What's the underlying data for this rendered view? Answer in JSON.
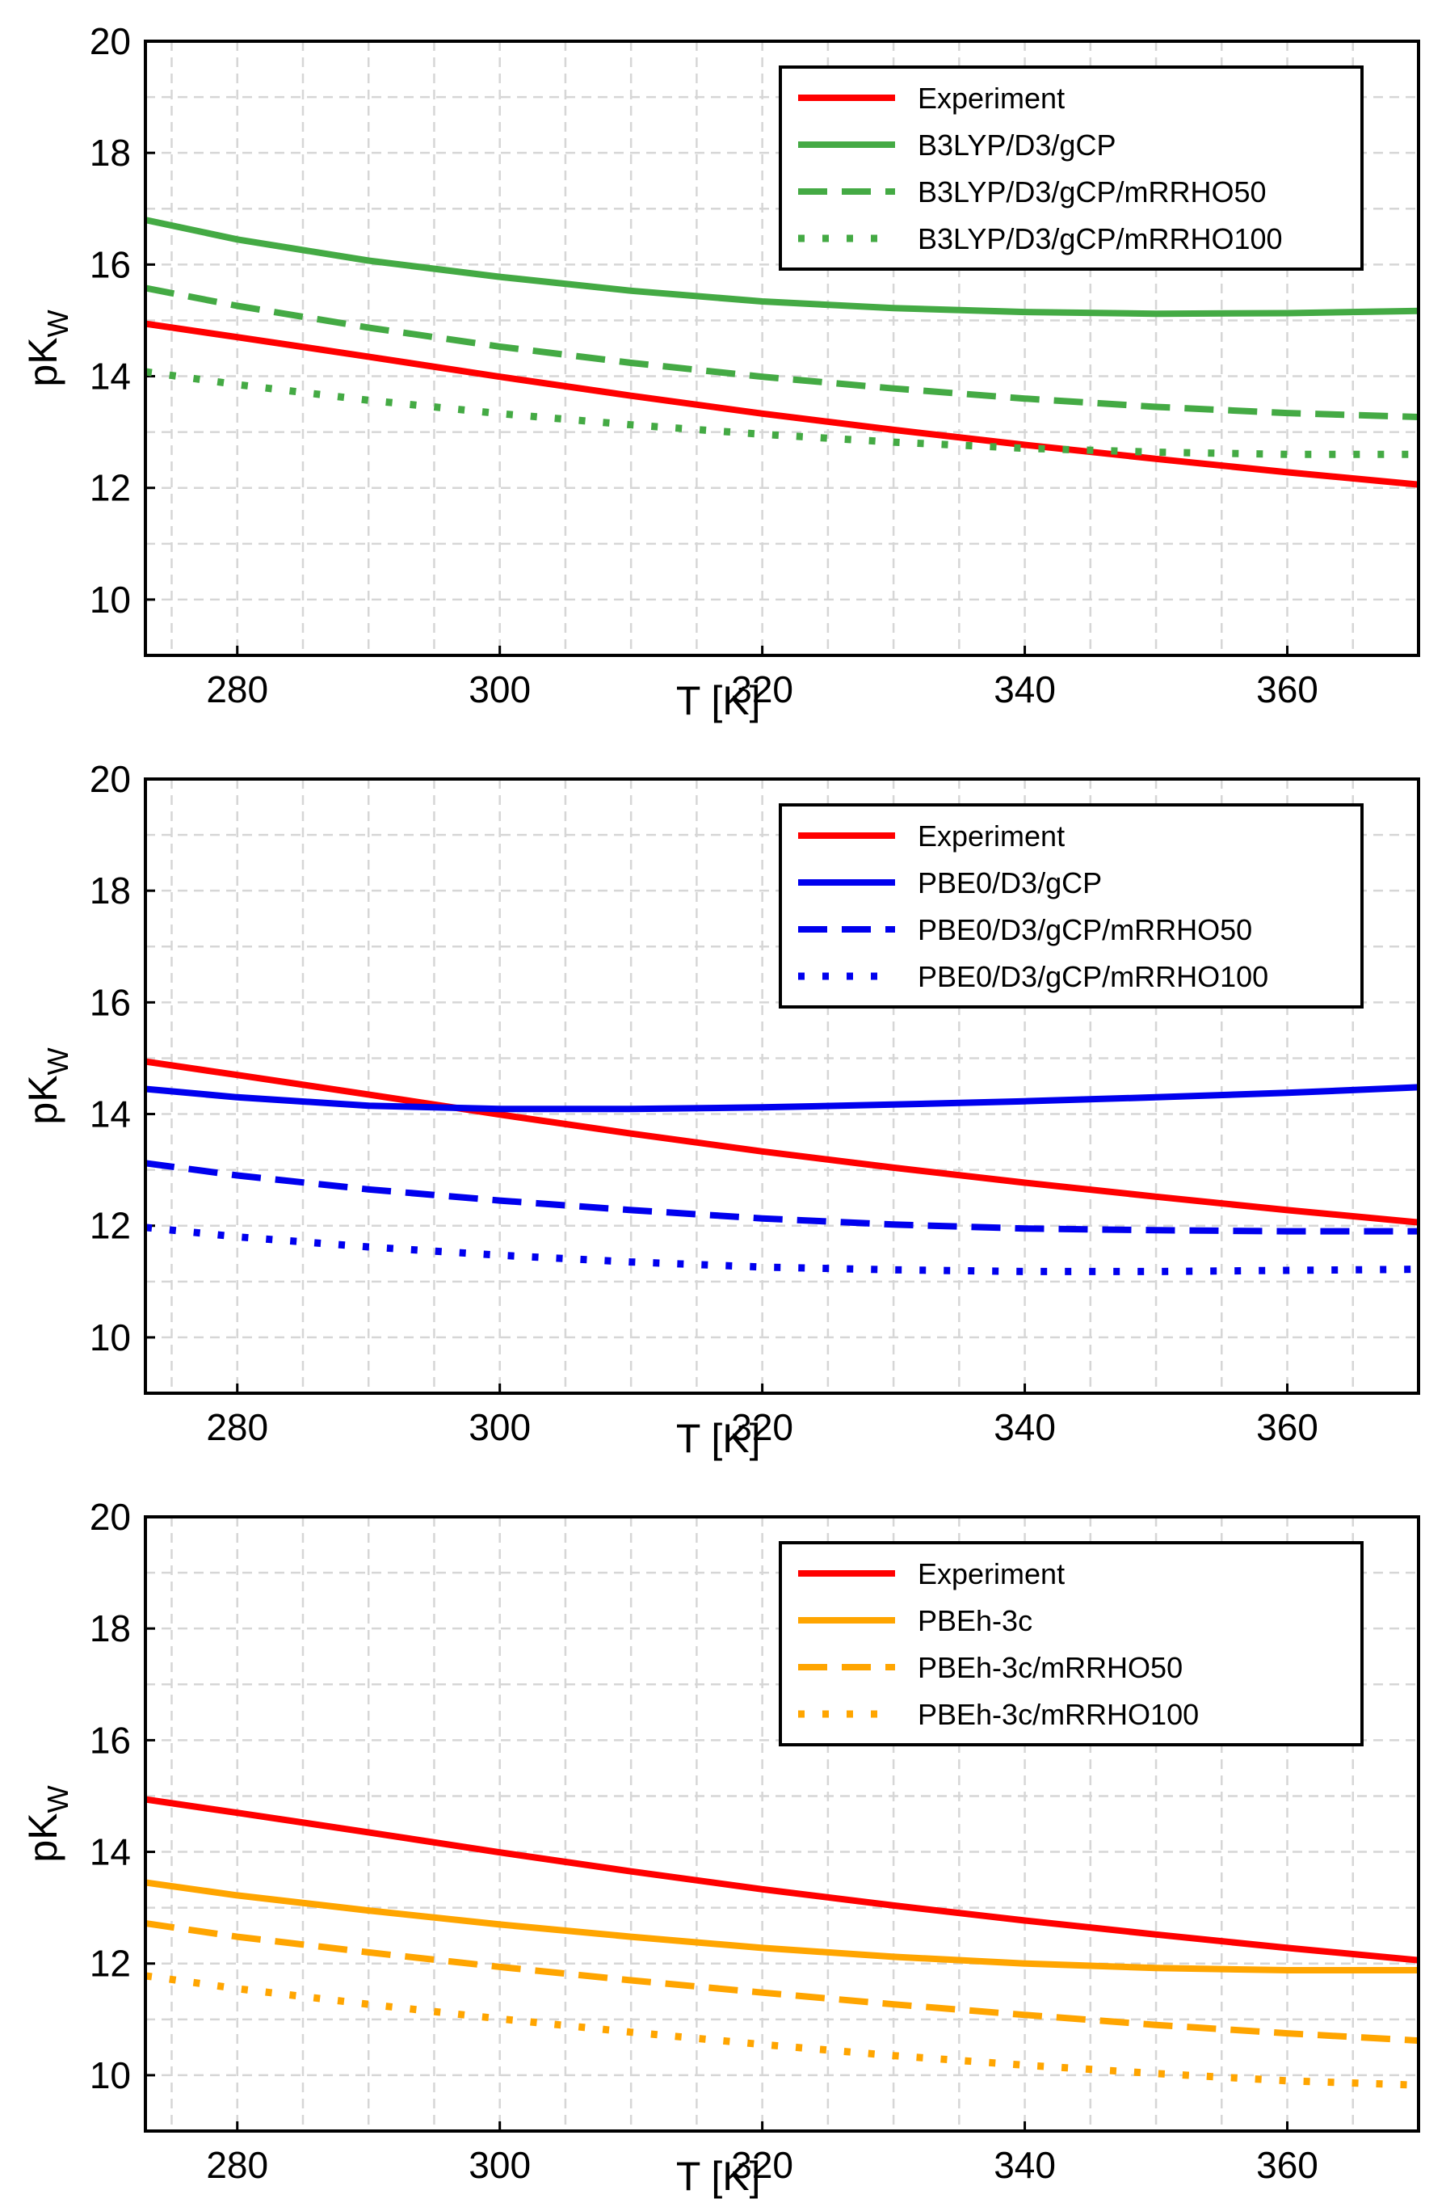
{
  "chart_data": [
    {
      "type": "line",
      "panel": "top",
      "title": "",
      "xlabel": "T [K]",
      "ylabel": "pK",
      "ylabel_subscript": "W",
      "xlim": [
        273,
        370
      ],
      "ylim": [
        9,
        20
      ],
      "xticks": [
        "280",
        "300",
        "320",
        "340",
        "360"
      ],
      "yticks": [
        "10",
        "12",
        "14",
        "16",
        "18",
        "20"
      ],
      "grid": true,
      "legend_position": "top-right",
      "x": [
        273,
        280,
        290,
        300,
        310,
        320,
        330,
        340,
        350,
        360,
        370
      ],
      "series": [
        {
          "name": "Experiment",
          "color": "#ff0000",
          "style": "solid",
          "values": [
            14.94,
            14.7,
            14.35,
            13.99,
            13.65,
            13.33,
            13.04,
            12.77,
            12.52,
            12.28,
            12.06
          ]
        },
        {
          "name": "B3LYP/D3/gCP",
          "color": "#44aa44",
          "style": "solid",
          "values": [
            16.8,
            16.45,
            16.07,
            15.78,
            15.53,
            15.34,
            15.22,
            15.15,
            15.12,
            15.13,
            15.17
          ]
        },
        {
          "name": "B3LYP/D3/gCP/mRRHO50",
          "color": "#44aa44",
          "style": "dashed",
          "values": [
            15.58,
            15.26,
            14.87,
            14.53,
            14.24,
            13.99,
            13.78,
            13.6,
            13.45,
            13.34,
            13.27
          ]
        },
        {
          "name": "B3LYP/D3/gCP/mRRHO100",
          "color": "#44aa44",
          "style": "dotted",
          "values": [
            14.08,
            13.85,
            13.57,
            13.33,
            13.13,
            12.96,
            12.82,
            12.71,
            12.64,
            12.6,
            12.6
          ]
        }
      ]
    },
    {
      "type": "line",
      "panel": "middle",
      "title": "",
      "xlabel": "T [K]",
      "ylabel": "pK",
      "ylabel_subscript": "W",
      "xlim": [
        273,
        370
      ],
      "ylim": [
        9,
        20
      ],
      "xticks": [
        "280",
        "300",
        "320",
        "340",
        "360"
      ],
      "yticks": [
        "10",
        "12",
        "14",
        "16",
        "18",
        "20"
      ],
      "grid": true,
      "legend_position": "top-right",
      "x": [
        273,
        280,
        290,
        300,
        310,
        320,
        330,
        340,
        350,
        360,
        370
      ],
      "series": [
        {
          "name": "Experiment",
          "color": "#ff0000",
          "style": "solid",
          "values": [
            14.94,
            14.7,
            14.35,
            13.99,
            13.65,
            13.33,
            13.04,
            12.77,
            12.52,
            12.28,
            12.06
          ]
        },
        {
          "name": "PBE0/D3/gCP",
          "color": "#0000ee",
          "style": "solid",
          "values": [
            14.45,
            14.3,
            14.15,
            14.09,
            14.09,
            14.12,
            14.17,
            14.23,
            14.3,
            14.38,
            14.48
          ]
        },
        {
          "name": "PBE0/D3/gCP/mRRHO50",
          "color": "#0000ee",
          "style": "dashed",
          "values": [
            13.12,
            12.9,
            12.65,
            12.45,
            12.28,
            12.13,
            12.02,
            11.95,
            11.92,
            11.9,
            11.9
          ]
        },
        {
          "name": "PBE0/D3/gCP/mRRHO100",
          "color": "#0000ee",
          "style": "dotted",
          "values": [
            11.97,
            11.8,
            11.62,
            11.47,
            11.35,
            11.26,
            11.21,
            11.18,
            11.18,
            11.2,
            11.22
          ]
        }
      ]
    },
    {
      "type": "line",
      "panel": "bottom",
      "title": "",
      "xlabel": "T [K]",
      "ylabel": "pK",
      "ylabel_subscript": "W",
      "xlim": [
        273,
        370
      ],
      "ylim": [
        9,
        20
      ],
      "xticks": [
        "280",
        "300",
        "320",
        "340",
        "360"
      ],
      "yticks": [
        "10",
        "12",
        "14",
        "16",
        "18",
        "20"
      ],
      "grid": true,
      "legend_position": "top-right",
      "x": [
        273,
        280,
        290,
        300,
        310,
        320,
        330,
        340,
        350,
        360,
        370
      ],
      "series": [
        {
          "name": "Experiment",
          "color": "#ff0000",
          "style": "solid",
          "values": [
            14.94,
            14.7,
            14.35,
            13.99,
            13.65,
            13.33,
            13.04,
            12.77,
            12.52,
            12.28,
            12.06
          ]
        },
        {
          "name": "PBEh-3c",
          "color": "#ffa500",
          "style": "solid",
          "values": [
            13.45,
            13.22,
            12.95,
            12.7,
            12.48,
            12.28,
            12.12,
            12.0,
            11.92,
            11.88,
            11.88
          ]
        },
        {
          "name": "PBEh-3c/mRRHO50",
          "color": "#ffa500",
          "style": "dashed",
          "values": [
            12.72,
            12.48,
            12.2,
            11.94,
            11.7,
            11.48,
            11.27,
            11.08,
            10.9,
            10.75,
            10.62
          ]
        },
        {
          "name": "PBEh-3c/mRRHO100",
          "color": "#ffa500",
          "style": "dotted",
          "values": [
            11.78,
            11.55,
            11.27,
            11.01,
            10.77,
            10.55,
            10.35,
            10.18,
            10.03,
            9.9,
            9.82
          ]
        }
      ]
    }
  ]
}
